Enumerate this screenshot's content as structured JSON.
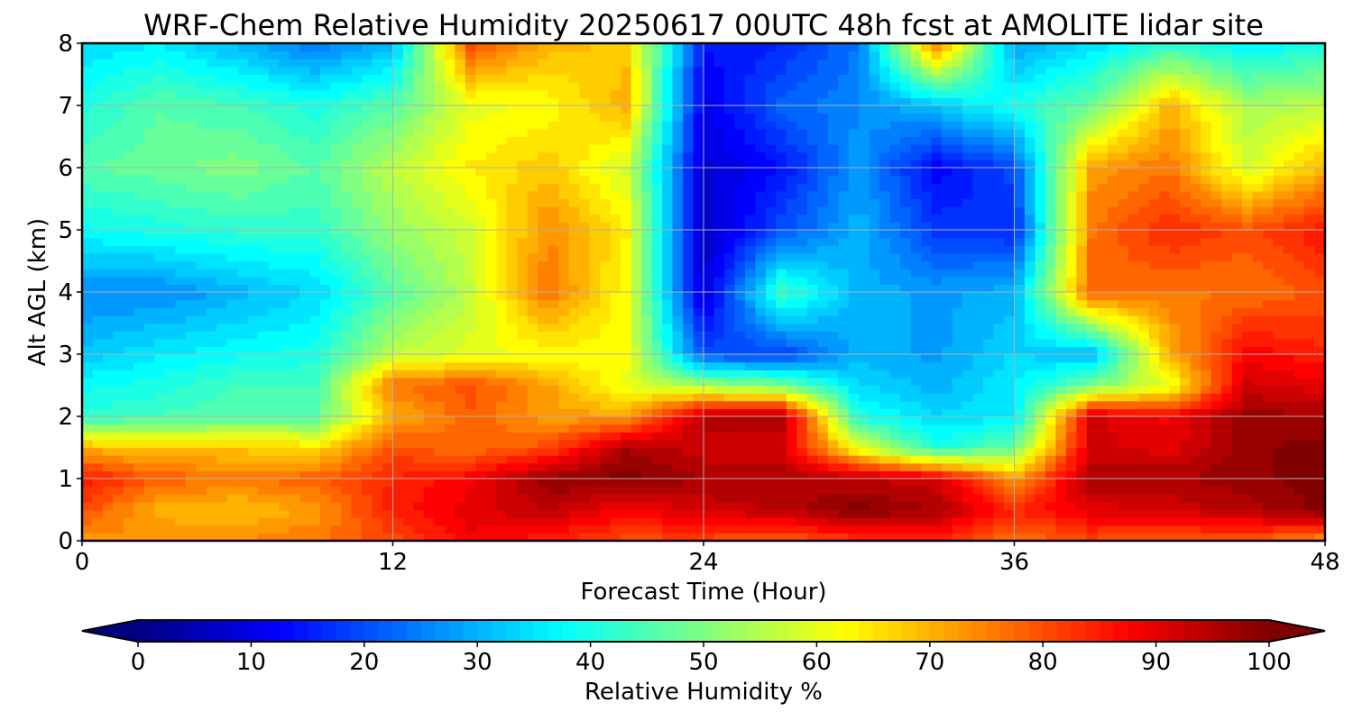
{
  "chart_data": {
    "type": "heatmap",
    "title": "WRF-Chem Relative Humidity 20250617 00UTC 48h fcst at AMOLITE lidar site",
    "xlabel": "Forecast Time (Hour)",
    "ylabel": "Alt AGL (km)",
    "xlim": [
      0,
      48
    ],
    "ylim": [
      0,
      8
    ],
    "xticks": [
      "0",
      "12",
      "24",
      "36",
      "48"
    ],
    "yticks": [
      "0",
      "1",
      "2",
      "3",
      "4",
      "5",
      "6",
      "7",
      "8"
    ],
    "grid": true,
    "colormap": "jet",
    "colorbar": {
      "label": "Relative Humidity %",
      "range": [
        0,
        100
      ],
      "ticks": [
        "0",
        "10",
        "20",
        "30",
        "40",
        "50",
        "60",
        "70",
        "80",
        "90",
        "100"
      ],
      "extend": "both",
      "placement": "bottom"
    },
    "x": [
      0,
      3,
      6,
      9,
      12,
      15,
      18,
      21,
      24,
      27,
      30,
      33,
      36,
      39,
      42,
      45,
      48
    ],
    "z": [
      0,
      0.5,
      1,
      1.5,
      2,
      2.5,
      3,
      4,
      5,
      6,
      7,
      8
    ],
    "values": [
      [
        72,
        74,
        74,
        76,
        80,
        88,
        84,
        80,
        80,
        78,
        82,
        84,
        76,
        80,
        78,
        78,
        72
      ],
      [
        80,
        70,
        68,
        72,
        85,
        90,
        94,
        88,
        92,
        94,
        100,
        96,
        84,
        90,
        92,
        95,
        100
      ],
      [
        86,
        78,
        76,
        78,
        84,
        88,
        98,
        100,
        96,
        96,
        94,
        92,
        72,
        96,
        96,
        98,
        100
      ],
      [
        70,
        68,
        68,
        66,
        80,
        76,
        80,
        96,
        92,
        92,
        60,
        40,
        48,
        92,
        90,
        98,
        100
      ],
      [
        42,
        44,
        46,
        46,
        70,
        78,
        72,
        72,
        95,
        96,
        40,
        34,
        36,
        92,
        88,
        98,
        96
      ],
      [
        38,
        40,
        44,
        44,
        76,
        80,
        72,
        60,
        54,
        50,
        34,
        30,
        36,
        50,
        60,
        92,
        90
      ],
      [
        32,
        36,
        38,
        40,
        56,
        60,
        62,
        62,
        20,
        18,
        30,
        28,
        34,
        30,
        70,
        88,
        84
      ],
      [
        26,
        26,
        30,
        34,
        46,
        56,
        76,
        62,
        8,
        44,
        30,
        28,
        30,
        78,
        76,
        76,
        80
      ],
      [
        38,
        40,
        42,
        42,
        52,
        58,
        74,
        64,
        6,
        20,
        30,
        18,
        16,
        76,
        84,
        80,
        86
      ],
      [
        46,
        48,
        50,
        46,
        56,
        64,
        68,
        58,
        8,
        14,
        28,
        12,
        20,
        72,
        76,
        58,
        70
      ],
      [
        40,
        46,
        44,
        40,
        46,
        60,
        62,
        70,
        10,
        22,
        26,
        32,
        40,
        48,
        70,
        54,
        56
      ],
      [
        34,
        36,
        30,
        24,
        30,
        80,
        70,
        68,
        14,
        16,
        24,
        76,
        28,
        34,
        42,
        36,
        40
      ]
    ]
  },
  "colors": {
    "jet": [
      "#000080",
      "#0000ff",
      "#0080ff",
      "#00ffff",
      "#80ff80",
      "#ffff00",
      "#ff8000",
      "#ff0000",
      "#800000"
    ],
    "grid": "#b0b0b0",
    "frame": "#000000"
  }
}
